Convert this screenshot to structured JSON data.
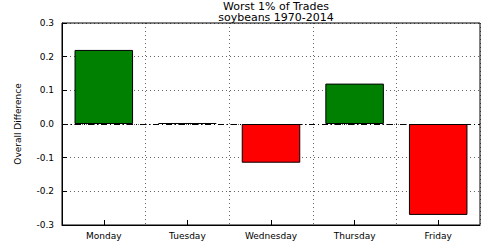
{
  "chart_data": {
    "type": "bar",
    "title": "Worst 1% of Trades",
    "subtitle": "soybeans 1970-2014",
    "y_label": "Overall Difference",
    "categories": [
      "Monday",
      "Tuesday",
      "Wednesday",
      "Thursday",
      "Friday"
    ],
    "values": [
      0.22,
      0.003,
      -0.115,
      0.12,
      -0.27
    ],
    "colors": [
      "#008000",
      "#008000",
      "#ff0000",
      "#008000",
      "#ff0000"
    ],
    "ylim": [
      -0.3,
      0.3
    ],
    "yticks": [
      -0.3,
      -0.2,
      -0.1,
      {
        "value": 0,
        "label": "0.0"
      },
      0.1,
      0.2,
      0.3
    ],
    "grid": true
  }
}
